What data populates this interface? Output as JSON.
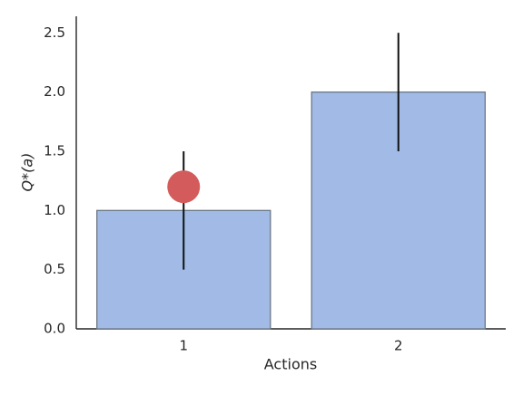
{
  "chart_data": {
    "type": "bar",
    "xlabel": "Actions",
    "ylabel": "Q*(a)",
    "categories": [
      "1",
      "2"
    ],
    "values": [
      1,
      2
    ],
    "errors": [
      0.5,
      0.5
    ],
    "points": [
      1.2,
      null
    ],
    "color": "#a1bbe6",
    "edge_color": "#6b7785",
    "error_color": "#111111",
    "point_color": "#d45b5b",
    "ylim": [
      0,
      2.64
    ],
    "yticks": [
      {
        "value": 0,
        "label": "0.0"
      },
      {
        "value": 0.5,
        "label": "0.5"
      },
      {
        "value": 1,
        "label": "1.0"
      },
      {
        "value": 1.5,
        "label": "1.5"
      },
      {
        "value": 2,
        "label": "2.0"
      },
      {
        "value": 2.5,
        "label": "2.5"
      }
    ],
    "grid": false
  }
}
